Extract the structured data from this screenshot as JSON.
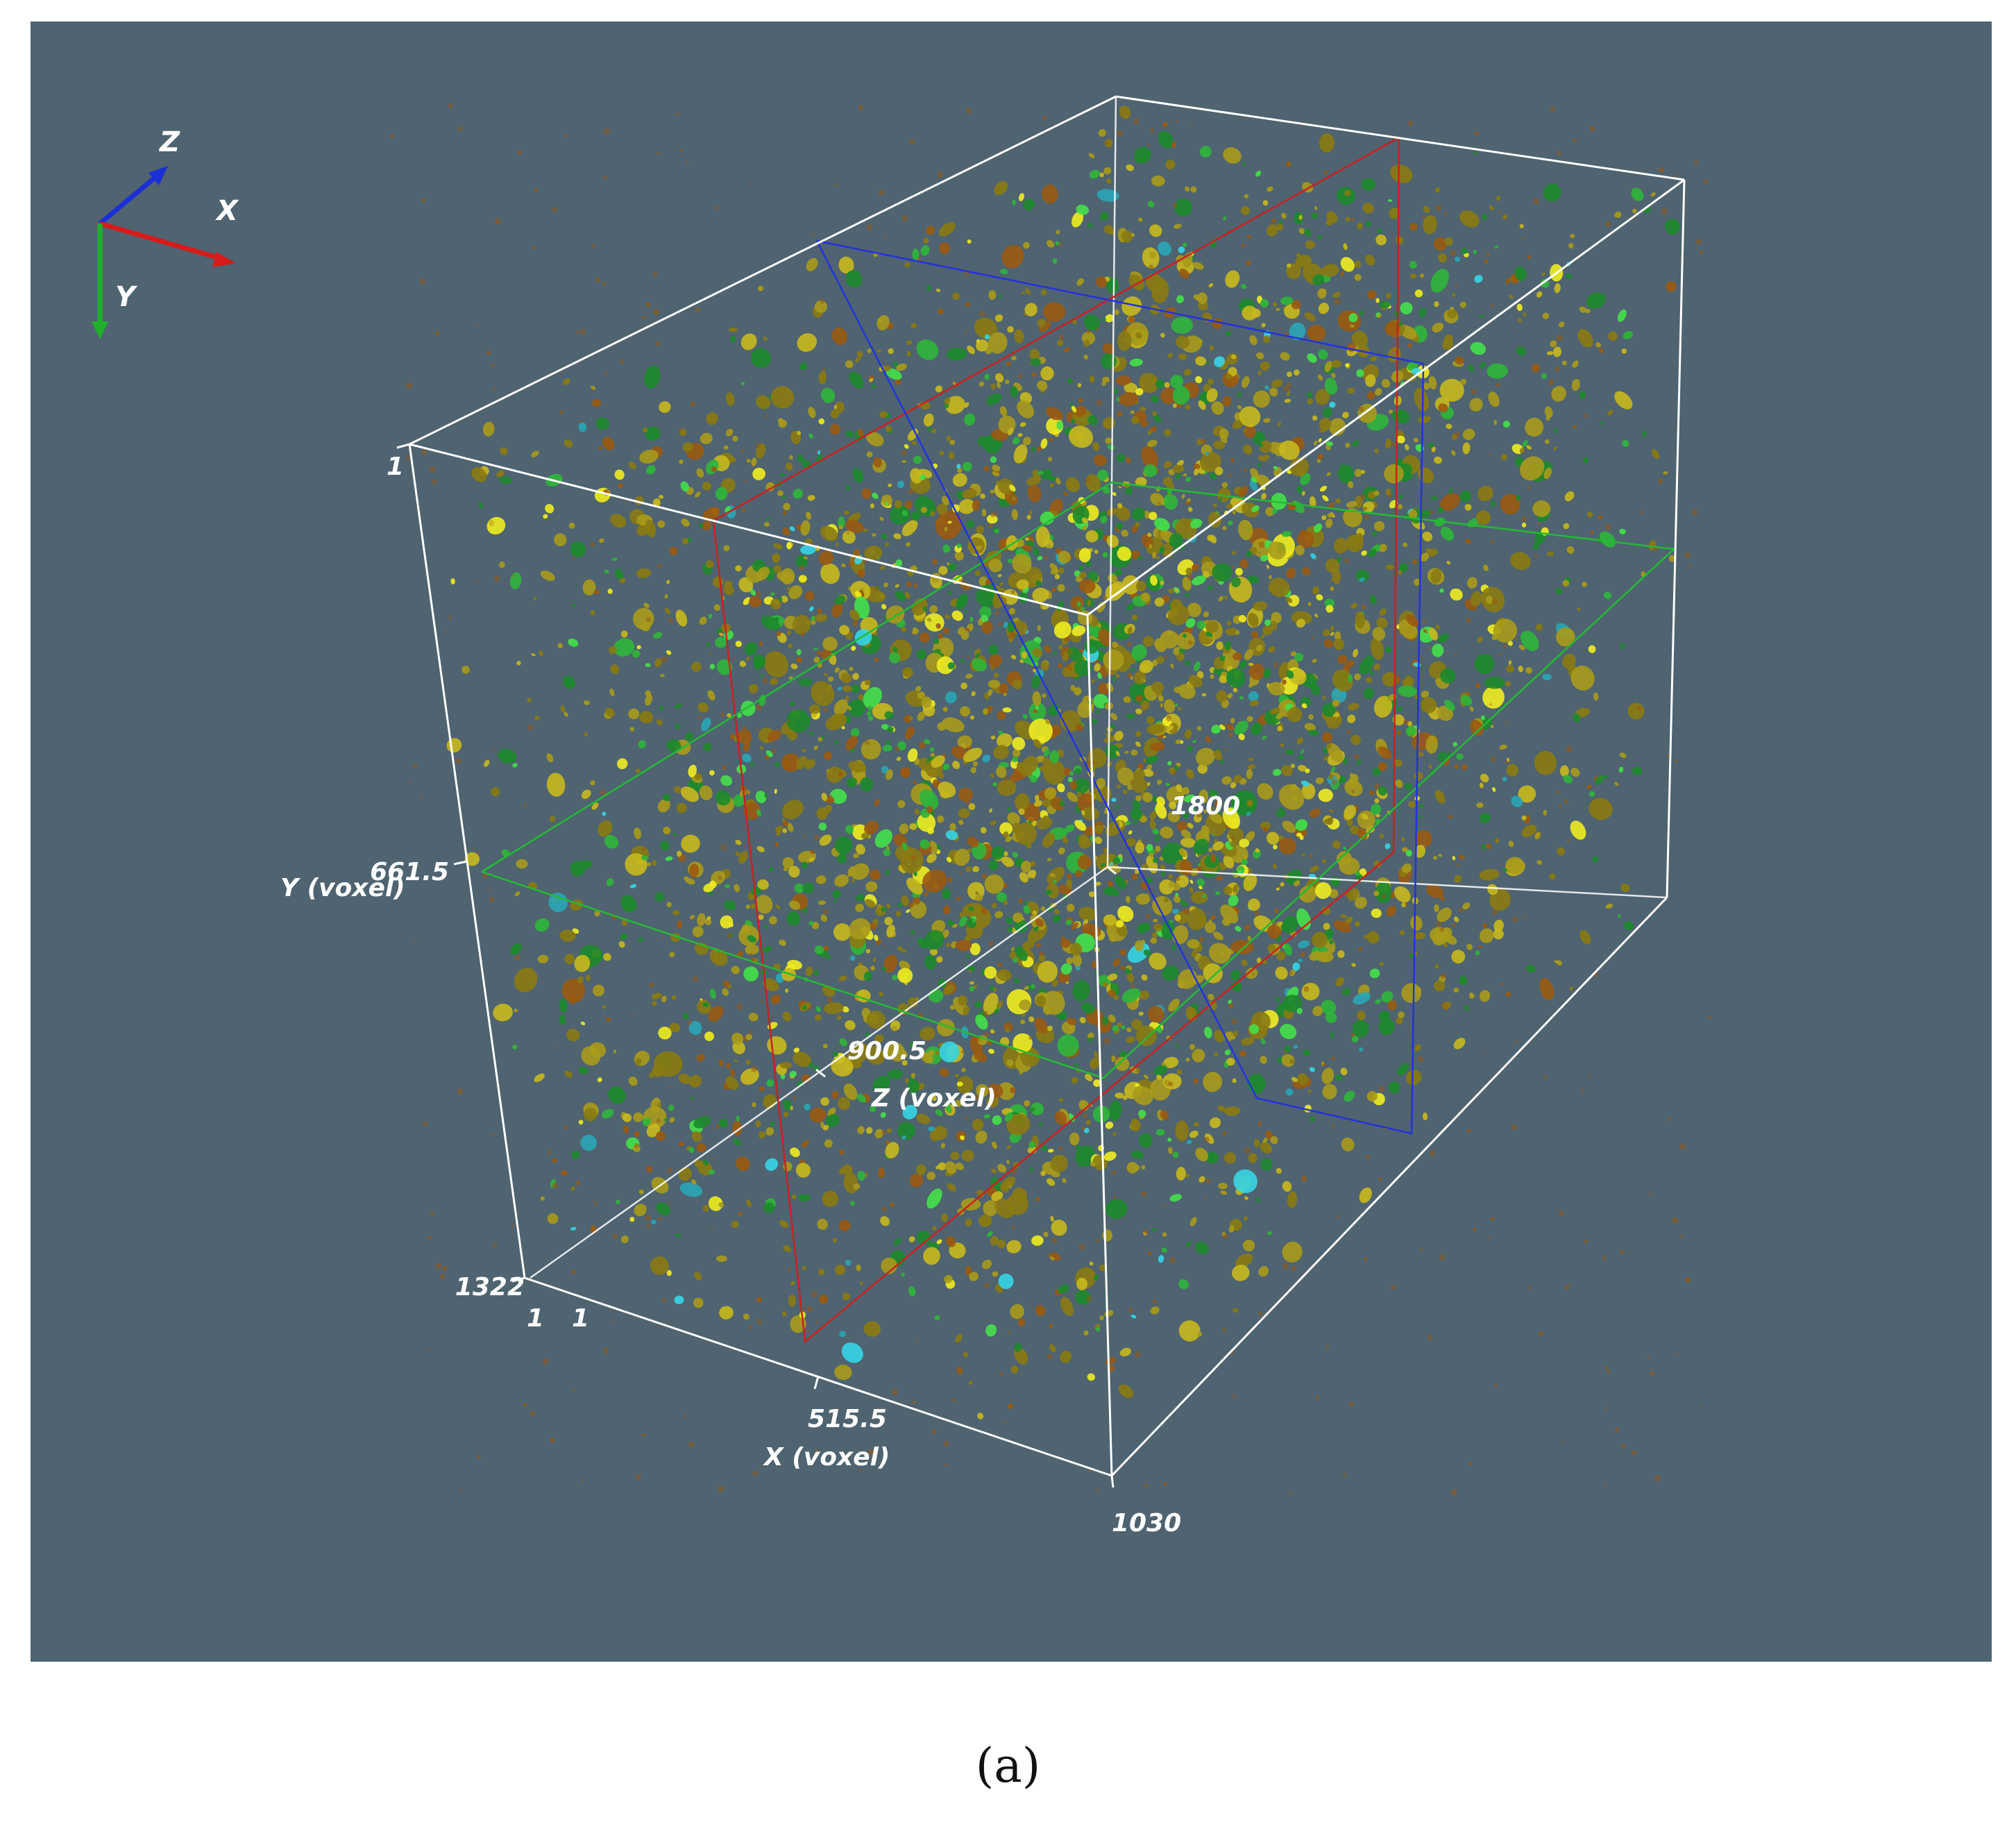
{
  "colors": {
    "background": "#4f6370",
    "box_edges": "#ffffff",
    "slice_x": "#cc2020",
    "slice_y": "#22bb33",
    "slice_z": "#2233dd",
    "phase_colors": [
      "#8a7a12",
      "#a89a1a",
      "#c8b81c",
      "#f0ec20",
      "#1c8a2a",
      "#2fb53a",
      "#44e04a",
      "#2aa5b5",
      "#35d5e5",
      "#9a5a10"
    ]
  },
  "orientation_axes": {
    "z": "Z",
    "x": "X",
    "y": "Y"
  },
  "axes": {
    "y": {
      "title": "Y (voxel)",
      "ticks": [
        "1",
        "661.5",
        "1322"
      ]
    },
    "x": {
      "title": "X (voxel)",
      "ticks": [
        "1",
        "515.5",
        "1030"
      ]
    },
    "z": {
      "title": "Z (voxel)",
      "ticks": [
        "1",
        "900.5",
        "1800"
      ]
    }
  },
  "caption": "(a)"
}
